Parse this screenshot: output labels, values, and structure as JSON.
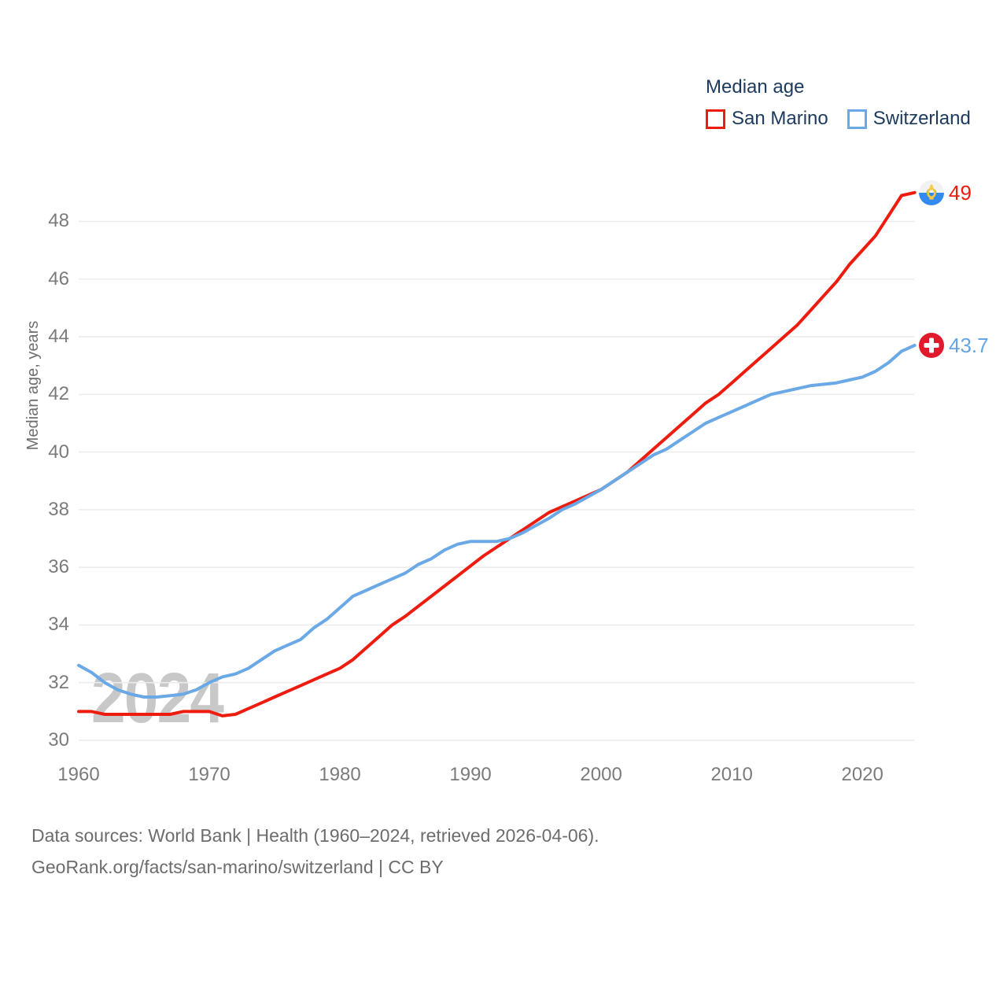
{
  "watermark": "2024",
  "legend": {
    "title": "Median age",
    "items": [
      {
        "label": "San Marino",
        "color": "#ee1c0f"
      },
      {
        "label": "Switzerland",
        "color": "#6aa9e6"
      }
    ]
  },
  "end_labels": [
    {
      "series": "San Marino",
      "value": "49",
      "color": "#ee1c0f",
      "flag_icon": "san-marino-flag"
    },
    {
      "series": "Switzerland",
      "value": "43.7",
      "color": "#64a5e3",
      "flag_icon": "switzerland-flag"
    }
  ],
  "footer": {
    "line1": "Data sources: World Bank | Health (1960–2024, retrieved 2026-04-06).",
    "line2": "GeoRank.org/facts/san-marino/switzerland | CC BY"
  },
  "chart_data": {
    "type": "line",
    "title": "Median age",
    "xlabel": "",
    "ylabel": "Median age, years",
    "ylim": [
      30,
      49.5
    ],
    "grid": "horizontal",
    "legend_position": "top-right",
    "yticks": [
      30,
      32,
      34,
      36,
      38,
      40,
      42,
      44,
      46,
      48
    ],
    "xticks": [
      1960,
      1970,
      1980,
      1990,
      2000,
      2010,
      2020
    ],
    "x": [
      1960,
      1961,
      1962,
      1963,
      1964,
      1965,
      1966,
      1967,
      1968,
      1969,
      1970,
      1971,
      1972,
      1973,
      1974,
      1975,
      1976,
      1977,
      1978,
      1979,
      1980,
      1981,
      1982,
      1983,
      1984,
      1985,
      1986,
      1987,
      1988,
      1989,
      1990,
      1991,
      1992,
      1993,
      1994,
      1995,
      1996,
      1997,
      1998,
      1999,
      2000,
      2001,
      2002,
      2003,
      2004,
      2005,
      2006,
      2007,
      2008,
      2009,
      2010,
      2011,
      2012,
      2013,
      2014,
      2015,
      2016,
      2017,
      2018,
      2019,
      2020,
      2021,
      2022,
      2023,
      2024
    ],
    "series": [
      {
        "name": "San Marino",
        "color": "#ee1c0f",
        "end_value": 49,
        "values": [
          31.0,
          31.0,
          30.9,
          30.9,
          30.9,
          30.9,
          30.9,
          30.9,
          31.0,
          31.0,
          31.0,
          30.85,
          30.9,
          31.1,
          31.3,
          31.5,
          31.7,
          31.9,
          32.1,
          32.3,
          32.5,
          32.8,
          33.2,
          33.6,
          34.0,
          34.3,
          34.65,
          35.0,
          35.35,
          35.7,
          36.05,
          36.4,
          36.7,
          37.0,
          37.3,
          37.6,
          37.9,
          38.1,
          38.3,
          38.5,
          38.7,
          39.0,
          39.3,
          39.7,
          40.1,
          40.5,
          40.9,
          41.3,
          41.7,
          42.0,
          42.4,
          42.8,
          43.2,
          43.6,
          44.0,
          44.4,
          44.9,
          45.4,
          45.9,
          46.5,
          47.0,
          47.5,
          48.2,
          48.9,
          49.0
        ]
      },
      {
        "name": "Switzerland",
        "color": "#6aa9e6",
        "end_value": 43.7,
        "values": [
          32.6,
          32.35,
          32.0,
          31.75,
          31.6,
          31.5,
          31.5,
          31.55,
          31.6,
          31.75,
          32.0,
          32.2,
          32.3,
          32.5,
          32.8,
          33.1,
          33.3,
          33.5,
          33.9,
          34.2,
          34.6,
          35.0,
          35.2,
          35.4,
          35.6,
          35.8,
          36.1,
          36.3,
          36.6,
          36.8,
          36.9,
          36.9,
          36.9,
          37.0,
          37.2,
          37.45,
          37.7,
          38.0,
          38.2,
          38.45,
          38.7,
          39.0,
          39.3,
          39.6,
          39.9,
          40.1,
          40.4,
          40.7,
          41.0,
          41.2,
          41.4,
          41.6,
          41.8,
          42.0,
          42.1,
          42.2,
          42.3,
          42.35,
          42.4,
          42.5,
          42.6,
          42.8,
          43.1,
          43.5,
          43.7
        ]
      }
    ]
  }
}
